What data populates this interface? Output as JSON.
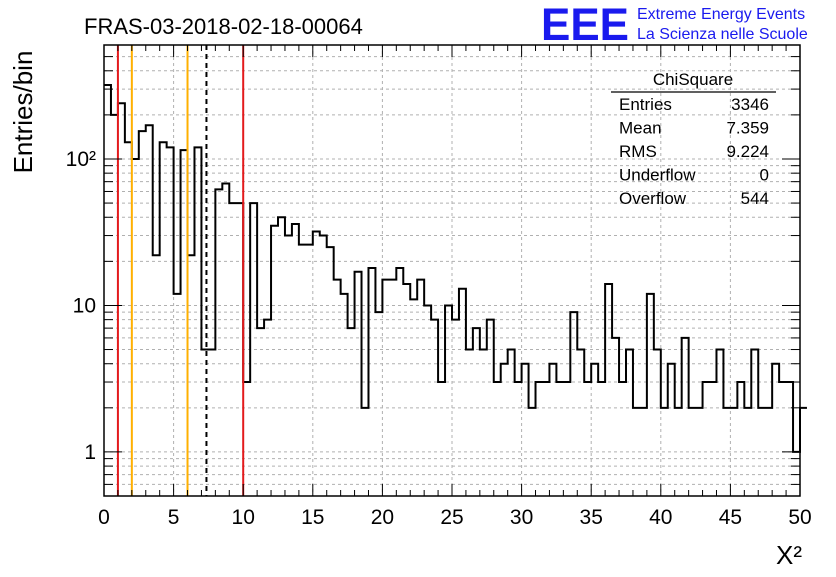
{
  "chart_data": {
    "type": "histogram",
    "title": "FRAS-03-2018-02-18-00064",
    "xlabel": "X²",
    "ylabel": "Entries/bin",
    "y_scale": "log",
    "xlim": [
      0,
      50
    ],
    "ylim": [
      0.5,
      600
    ],
    "grid": true,
    "x_tick_labels": [
      "0",
      "5",
      "10",
      "15",
      "20",
      "25",
      "30",
      "35",
      "40",
      "45",
      "50"
    ],
    "x_tick_values": [
      0,
      5,
      10,
      15,
      20,
      25,
      30,
      35,
      40,
      45,
      50
    ],
    "y_tick_labels": [
      "1",
      "10",
      "10²"
    ],
    "y_tick_values": [
      1,
      10,
      100
    ],
    "bin_width": 0.5,
    "values": [
      320,
      200,
      240,
      130,
      100,
      155,
      170,
      22,
      130,
      120,
      12,
      115,
      22,
      120,
      5,
      5,
      62,
      68,
      50,
      50,
      3,
      50,
      7,
      8,
      35,
      40,
      30,
      36,
      26,
      26,
      32,
      30,
      25,
      15,
      12,
      7,
      17,
      2,
      18,
      9,
      15,
      15,
      18,
      14,
      11,
      15,
      10,
      8,
      3,
      10,
      8,
      13,
      5,
      7,
      5,
      8,
      3,
      4,
      5,
      3,
      4,
      2,
      3,
      3,
      4,
      3,
      3,
      9,
      5,
      3,
      4,
      3,
      14,
      6,
      3,
      5,
      2,
      2,
      12,
      5,
      2,
      4,
      2,
      6,
      2,
      2,
      3,
      3,
      5,
      2,
      2,
      3,
      2,
      5,
      2,
      2,
      4,
      3,
      3,
      1,
      2
    ],
    "vertical_lines": [
      {
        "x": 1.0,
        "color": "#e31a1c",
        "style": "solid"
      },
      {
        "x": 2.0,
        "color": "#ffb000",
        "style": "solid"
      },
      {
        "x": 6.0,
        "color": "#ffb000",
        "style": "solid"
      },
      {
        "x": 7.36,
        "color": "#000000",
        "style": "dashed"
      },
      {
        "x": 10.0,
        "color": "#e31a1c",
        "style": "solid"
      }
    ],
    "line_color": "#000000",
    "stats_box": {
      "title": "ChiSquare",
      "placement": "top-right",
      "rows": [
        {
          "label": "Entries",
          "value": "3346"
        },
        {
          "label": "Mean",
          "value": "7.359"
        },
        {
          "label": "RMS",
          "value": "9.224"
        },
        {
          "label": "Underflow",
          "value": "0"
        },
        {
          "label": "Overflow",
          "value": "544"
        }
      ]
    }
  },
  "logo": {
    "text": "EEE",
    "line1": "Extreme Energy Events",
    "line2": "La Scienza nelle Scuole",
    "color": "#1a1aee"
  }
}
